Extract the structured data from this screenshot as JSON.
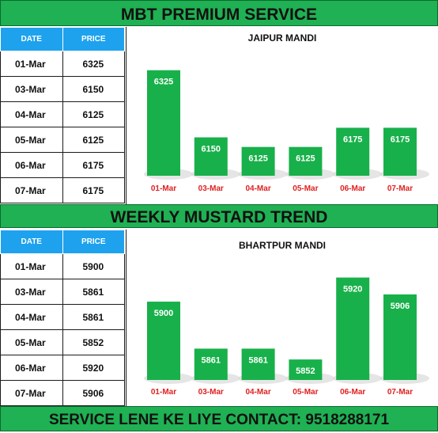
{
  "header": {
    "title": "MBT PREMIUM SERVICE"
  },
  "middle_banner": {
    "title": "WEEKLY MUSTARD TREND"
  },
  "footer": {
    "contact": "SERVICE LENE KE LIYE CONTACT: 9518288171"
  },
  "colors": {
    "banner_green": "#1fb153",
    "bar_green": "#18b04a",
    "header_blue": "#1ea2ee",
    "category_red": "#e02020"
  },
  "tables": [
    {
      "headers": {
        "date": "DATE",
        "price": "PRICE"
      },
      "rows": [
        {
          "date": "01-Mar",
          "price": "6325"
        },
        {
          "date": "03-Mar",
          "price": "6150"
        },
        {
          "date": "04-Mar",
          "price": "6125"
        },
        {
          "date": "05-Mar",
          "price": "6125"
        },
        {
          "date": "06-Mar",
          "price": "6175"
        },
        {
          "date": "07-Mar",
          "price": "6175"
        }
      ]
    },
    {
      "headers": {
        "date": "DATE",
        "price": "PRICE"
      },
      "rows": [
        {
          "date": "01-Mar",
          "price": "5900"
        },
        {
          "date": "03-Mar",
          "price": "5861"
        },
        {
          "date": "04-Mar",
          "price": "5861"
        },
        {
          "date": "05-Mar",
          "price": "5852"
        },
        {
          "date": "06-Mar",
          "price": "5920"
        },
        {
          "date": "07-Mar",
          "price": "5906"
        }
      ]
    }
  ],
  "chart_data": [
    {
      "type": "bar",
      "title": "JAIPUR MANDI",
      "categories": [
        "01-Mar",
        "03-Mar",
        "04-Mar",
        "05-Mar",
        "06-Mar",
        "07-Mar"
      ],
      "values": [
        6325,
        6150,
        6125,
        6125,
        6175,
        6175
      ],
      "ylim": [
        6050,
        6345
      ],
      "grid": false,
      "data_labels": true
    },
    {
      "type": "bar",
      "title": "BHARTPUR MANDI",
      "categories": [
        "01-Mar",
        "03-Mar",
        "04-Mar",
        "05-Mar",
        "06-Mar",
        "07-Mar"
      ],
      "values": [
        5900,
        5861,
        5861,
        5852,
        5920,
        5906
      ],
      "ylim": [
        5835,
        5925
      ],
      "grid": false,
      "data_labels": true
    }
  ]
}
